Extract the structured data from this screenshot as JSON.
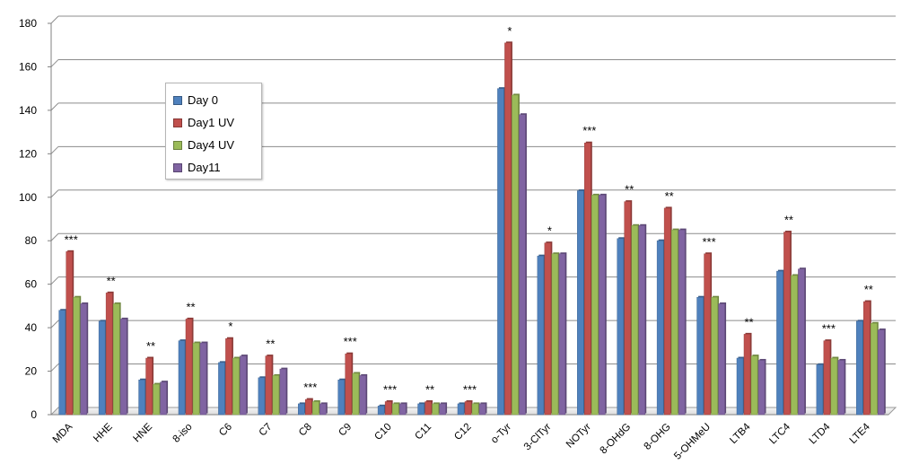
{
  "chart_data": {
    "type": "bar",
    "title": "",
    "xlabel": "",
    "ylabel": "",
    "ylim": [
      0,
      180
    ],
    "yticks": [
      0,
      20,
      40,
      60,
      80,
      100,
      120,
      140,
      160,
      180
    ],
    "grid": true,
    "legend_position": "upper-left",
    "categories": [
      "MDA",
      "HHE",
      "HNE",
      "8-iso",
      "C6",
      "C7",
      "C8",
      "C9",
      "C10",
      "C11",
      "C12",
      "o-Tyr",
      "3-ClTyr",
      "NOTyr",
      "8-OHdG",
      "8-OHG",
      "5-OHMeU",
      "LTB4",
      "LTC4",
      "LTD4",
      "LTE4"
    ],
    "series": [
      {
        "name": "Day 0",
        "color": "#4F81BD",
        "values": [
          48,
          43,
          16,
          34,
          24,
          17,
          5,
          16,
          4,
          5,
          5,
          150,
          73,
          103,
          81,
          80,
          54,
          26,
          66,
          23,
          43
        ]
      },
      {
        "name": "Day1 UV",
        "color": "#C0504D",
        "values": [
          75,
          56,
          26,
          44,
          35,
          27,
          7,
          28,
          6,
          6,
          6,
          171,
          79,
          125,
          98,
          95,
          74,
          37,
          84,
          34,
          52
        ]
      },
      {
        "name": "Day4 UV",
        "color": "#9BBB59",
        "values": [
          54,
          51,
          14,
          33,
          26,
          18,
          6,
          19,
          5,
          5,
          5,
          147,
          74,
          101,
          87,
          85,
          54,
          27,
          64,
          26,
          42
        ]
      },
      {
        "name": "Day11",
        "color": "#8064A2",
        "values": [
          51,
          44,
          15,
          33,
          27,
          21,
          5,
          18,
          5,
          5,
          5,
          138,
          74,
          101,
          87,
          85,
          51,
          25,
          67,
          25,
          39
        ]
      }
    ],
    "annotations": [
      "***",
      "**",
      "**",
      "**",
      "*",
      "**",
      "***",
      "***",
      "***",
      "**",
      "***",
      "*",
      "*",
      "***",
      "**",
      "**",
      "***",
      "**",
      "**",
      "***",
      "**"
    ]
  }
}
